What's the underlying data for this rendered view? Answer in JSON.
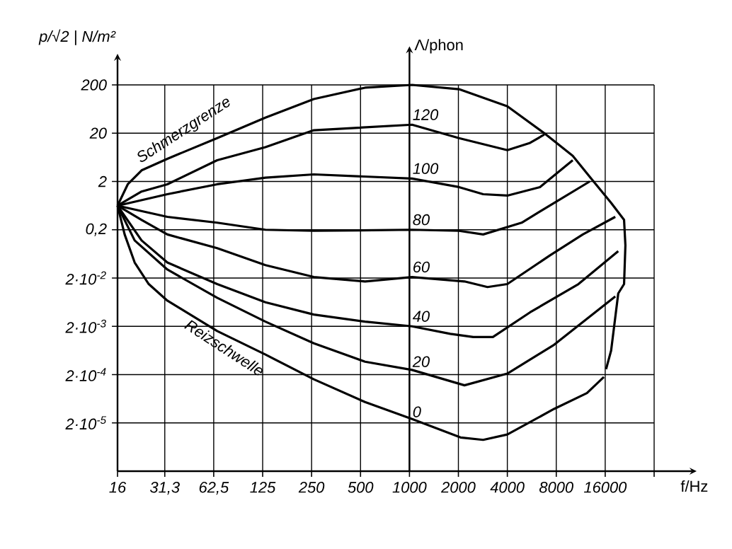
{
  "chart_data": {
    "type": "line",
    "xlabel": "f/Hz",
    "ylabel": "p/√2 | N/m²",
    "log": "xy",
    "grid": true,
    "xlim": [
      16,
      32000
    ],
    "ylim": [
      2e-06,
      200
    ],
    "xticks": [
      16,
      {
        "value": 31.25,
        "label": "31,3"
      },
      {
        "value": 62.5,
        "label": "62,5"
      },
      125,
      250,
      500,
      1000,
      2000,
      4000,
      8000,
      16000,
      {
        "value": 32000,
        "label": null
      }
    ],
    "yticks": [
      {
        "value": 2e-05,
        "label": "2·10$^{-5}$"
      },
      {
        "value": 0.0002,
        "label": "2·10$^{-4}$"
      },
      {
        "value": 0.002,
        "label": "2·10$^{-3}$"
      },
      {
        "value": 0.02,
        "label": "2·10$^{-2}$"
      },
      {
        "value": 0.2,
        "label": "0,2"
      },
      2,
      20,
      200
    ],
    "ref_lines": [
      {
        "axis": "x",
        "value": 1000,
        "label": "Λ/phon"
      }
    ],
    "series": [
      {
        "color": "#000000",
        "x": [
          16,
          18.5,
          22.5,
          32.4,
          65.6,
          130,
          258,
          533,
          1037,
          2017,
          4000,
          6750,
          10100,
          13400,
          17400,
          20900,
          21300,
          20900,
          19250,
          17400,
          16200
        ],
        "values": [
          0.63,
          1.75,
          3.4,
          5.9,
          15.8,
          42,
          102,
          175,
          200,
          163,
          72,
          20,
          6.8,
          2.1,
          0.72,
          0.32,
          0.095,
          0.015,
          0.0096,
          0.00063,
          0.00026
        ]
      },
      {
        "color": "#000000",
        "x": [
          16,
          22.5,
          32.4,
          65.6,
          130,
          258,
          1037,
          2017,
          4000,
          5520,
          6750
        ],
        "values": [
          0.63,
          1.24,
          1.75,
          5.5,
          10.3,
          23,
          30,
          15.8,
          8.9,
          12.6,
          18.7
        ]
      },
      {
        "color": "#000000",
        "x": [
          16,
          32.4,
          65.6,
          130,
          258,
          1037,
          2017,
          2840,
          4000,
          6350,
          10100
        ],
        "values": [
          0.63,
          1.09,
          1.75,
          2.4,
          2.8,
          2.3,
          1.53,
          1.09,
          1.02,
          1.53,
          5.5
        ]
      },
      {
        "color": "#000000",
        "x": [
          16,
          32.4,
          65.6,
          130,
          258,
          1037,
          2017,
          2840,
          4900,
          7760,
          12850
        ],
        "values": [
          0.63,
          0.37,
          0.28,
          0.2,
          0.19,
          0.2,
          0.19,
          0.16,
          0.28,
          0.72,
          2.0
        ]
      },
      {
        "color": "#000000",
        "x": [
          16,
          22.5,
          32.4,
          65.6,
          130,
          258,
          533,
          1037,
          2180,
          3020,
          4000,
          7330,
          11650,
          18460
        ],
        "values": [
          0.63,
          0.32,
          0.16,
          0.083,
          0.037,
          0.021,
          0.017,
          0.021,
          0.017,
          0.013,
          0.015,
          0.059,
          0.16,
          0.37
        ]
      },
      {
        "color": "#000000",
        "x": [
          16,
          22.5,
          32.4,
          65.6,
          130,
          258,
          533,
          1037,
          1783,
          2470,
          3260,
          5520,
          10950,
          19250
        ],
        "values": [
          0.63,
          0.12,
          0.042,
          0.015,
          0.0063,
          0.0035,
          0.0025,
          0.002,
          0.0014,
          0.0012,
          0.0012,
          0.0039,
          0.015,
          0.072
        ]
      },
      {
        "color": "#000000",
        "x": [
          16,
          20.4,
          32.4,
          65.6,
          130,
          258,
          533,
          1037,
          2180,
          4000,
          7760,
          18460
        ],
        "values": [
          0.63,
          0.12,
          0.03,
          0.0078,
          0.0025,
          0.00089,
          0.00037,
          0.00025,
          0.00012,
          0.00021,
          0.00083,
          0.0083
        ]
      },
      {
        "color": "#000000",
        "x": [
          16,
          17.7,
          20.4,
          24.9,
          32.4,
          65.6,
          130,
          258,
          533,
          1037,
          2060,
          2840,
          4000,
          7760,
          12350,
          15700
        ],
        "values": [
          0.63,
          0.16,
          0.042,
          0.015,
          0.0068,
          0.0016,
          0.00052,
          0.00016,
          5.4e-05,
          2.4e-05,
          1e-05,
          8.9e-06,
          1.15e-05,
          3.9e-05,
          8.3e-05,
          0.000178
        ]
      }
    ],
    "annotations": [
      {
        "text": "Schmerzgrenze",
        "x": 22.5,
        "y": 3.4
      },
      {
        "text": "Reizschwelle",
        "x": 44,
        "y": 0.0036
      },
      {
        "text": "120",
        "x": 1000,
        "y": 30
      },
      {
        "text": "100",
        "x": 1000,
        "y": 2.3
      },
      {
        "text": "80",
        "x": 1000,
        "y": 0.2
      },
      {
        "text": "60",
        "x": 1000,
        "y": 0.021
      },
      {
        "text": "40",
        "x": 1000,
        "y": 0.002
      },
      {
        "text": "20",
        "x": 1000,
        "y": 0.00023
      },
      {
        "text": "0",
        "x": 1000,
        "y": 2.1e-05
      }
    ]
  }
}
